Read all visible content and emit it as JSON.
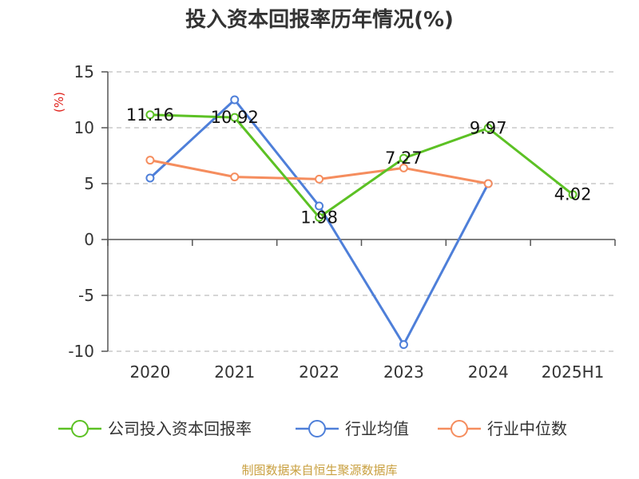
{
  "chart_data": {
    "type": "line",
    "title": "投入资本回报率历年情况(%)",
    "ylabel": "(%)",
    "categories": [
      "2020",
      "2021",
      "2022",
      "2023",
      "2024",
      "2025H1"
    ],
    "ylim": [
      -10,
      15
    ],
    "yticks": [
      15,
      10,
      5,
      0,
      -5,
      -10
    ],
    "grid": true,
    "legend_position": "bottom",
    "series": [
      {
        "name": "公司投入资本回报率",
        "color": "#5cc124",
        "values": [
          11.16,
          10.92,
          1.98,
          7.27,
          9.97,
          4.02
        ],
        "labels": [
          "11.16",
          "10.92",
          "1.98",
          "7.27",
          "9.97",
          "4.02"
        ]
      },
      {
        "name": "行业均值",
        "color": "#4e7fd9",
        "values": [
          5.5,
          12.5,
          3.0,
          -9.4,
          5.0,
          null
        ]
      },
      {
        "name": "行业中位数",
        "color": "#f58d5e",
        "values": [
          7.1,
          5.6,
          5.4,
          6.4,
          5.0,
          null
        ]
      }
    ]
  },
  "source": "制图数据来自恒生聚源数据库"
}
